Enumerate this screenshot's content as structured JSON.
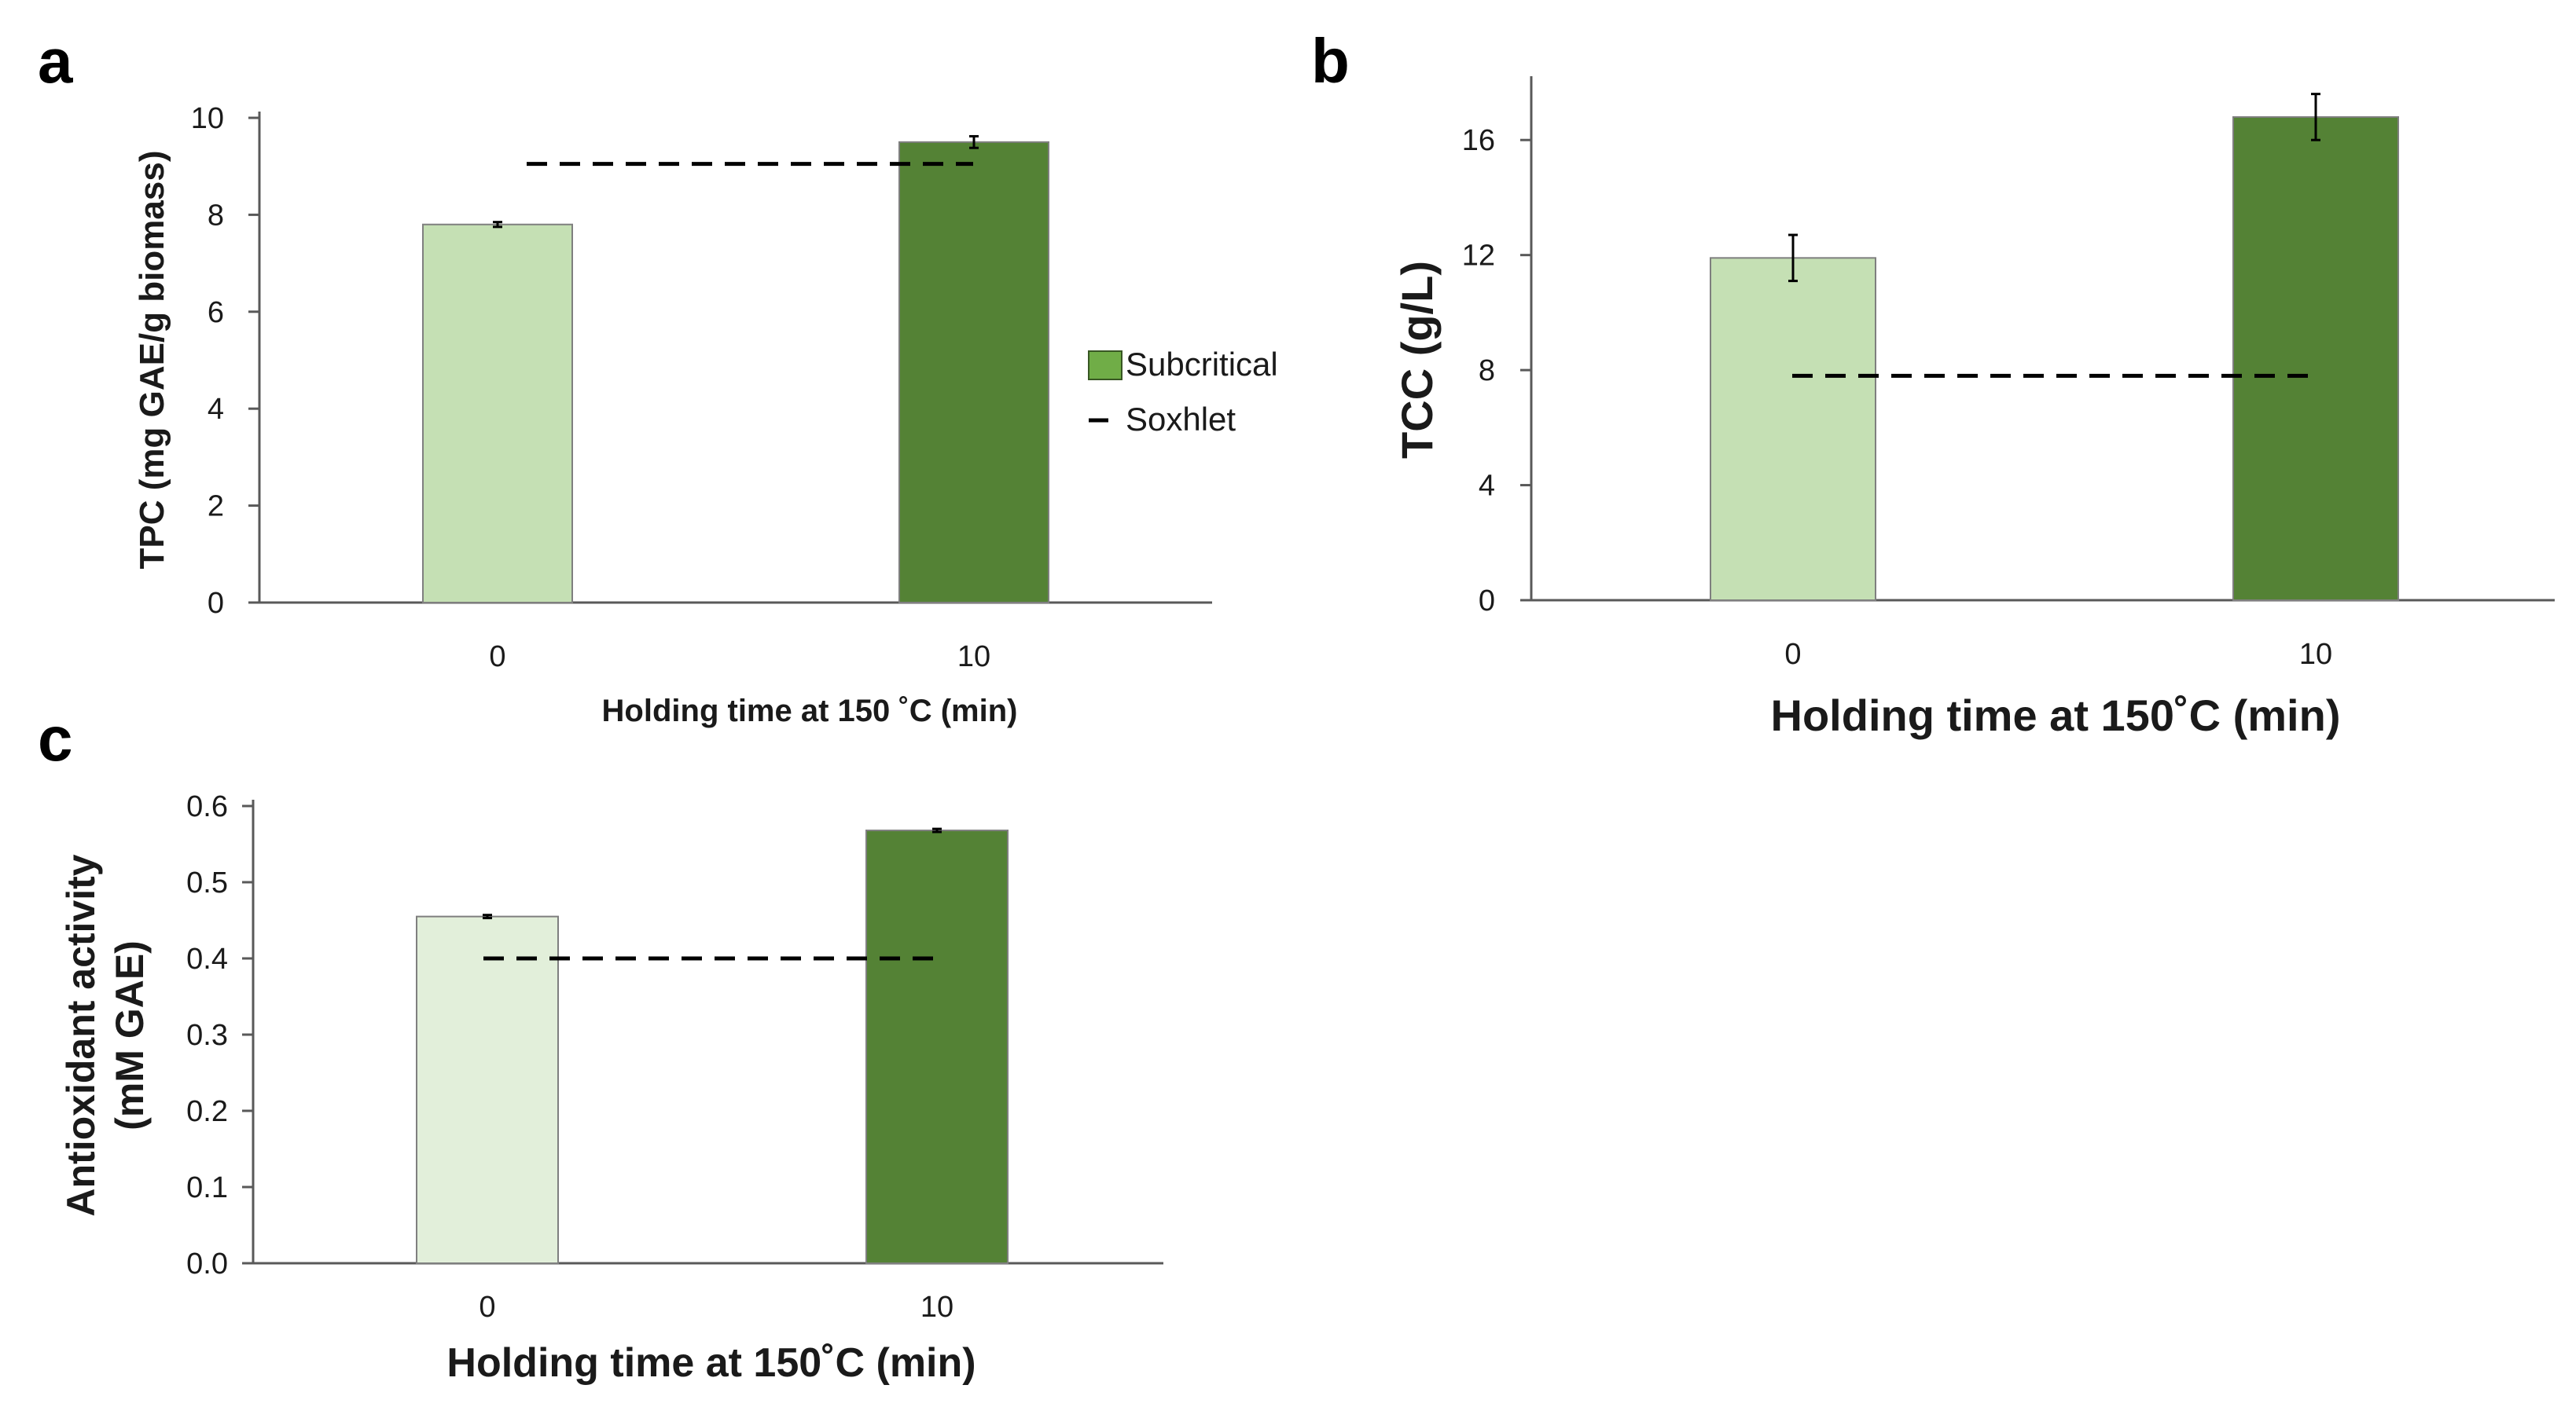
{
  "chart_data": [
    {
      "panel": "a",
      "type": "bar",
      "categories": [
        "0",
        "10"
      ],
      "values": [
        7.8,
        9.5
      ],
      "errors": [
        0.05,
        0.12
      ],
      "reference_line": {
        "name": "Soxhlet",
        "value": 9.05
      },
      "ylabel": "TPC (mg GAE/g biomass)",
      "xlabel": "Holding time at 150 ˚C (min)",
      "ylim": [
        0,
        10
      ],
      "yticks": [
        0,
        2,
        4,
        6,
        8,
        10
      ],
      "ytick_labels": [
        "0",
        "2",
        "4",
        "6",
        "8",
        "10"
      ],
      "bar_colors": [
        "#c5e0b4",
        "#548235"
      ]
    },
    {
      "panel": "b",
      "type": "bar",
      "categories": [
        "0",
        "10"
      ],
      "values": [
        11.9,
        16.8
      ],
      "errors": [
        0.8,
        0.8
      ],
      "reference_line": {
        "name": "Soxhlet",
        "value": 7.8
      },
      "ylabel": "TCC (g/L)",
      "xlabel": "Holding time at 150˚C (min)",
      "ylim": [
        0,
        18
      ],
      "yticks": [
        0,
        4,
        8,
        12,
        16
      ],
      "ytick_labels": [
        "0",
        "4",
        "8",
        "12",
        "16"
      ],
      "bar_colors": [
        "#c5e0b4",
        "#548235"
      ]
    },
    {
      "panel": "c",
      "type": "bar",
      "categories": [
        "0",
        "10"
      ],
      "values": [
        0.455,
        0.568
      ],
      "errors": [
        0.002,
        0.002
      ],
      "reference_line": {
        "name": "Soxhlet",
        "value": 0.4
      },
      "ylabel": "Antioxidant activity",
      "ylabel2": "(mM GAE)",
      "xlabel": "Holding time at 150˚C (min)",
      "ylim": [
        0,
        0.6
      ],
      "yticks": [
        0,
        0.1,
        0.2,
        0.3,
        0.4,
        0.5,
        0.6
      ],
      "ytick_labels": [
        "0.0",
        "0.1",
        "0.2",
        "0.3",
        "0.4",
        "0.5",
        "0.6"
      ],
      "bar_colors": [
        "#e2efda",
        "#548235"
      ]
    }
  ],
  "legend": {
    "items": [
      {
        "label": "Subcritical",
        "kind": "swatch",
        "color": "#70ad47"
      },
      {
        "label": "Soxhlet",
        "kind": "dash",
        "color": "#000000"
      }
    ]
  }
}
